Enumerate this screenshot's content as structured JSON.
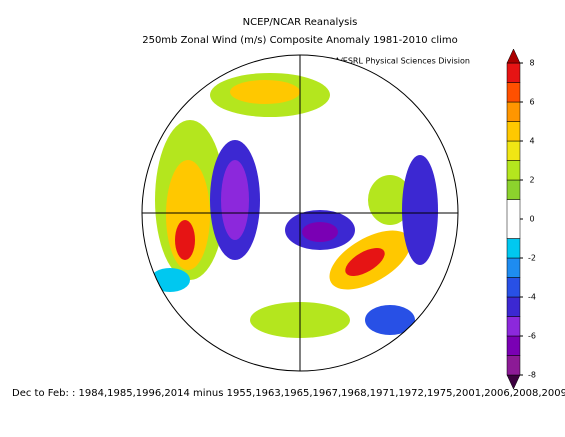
{
  "header": {
    "title": "NCEP/NCAR Reanalysis",
    "subtitle": "250mb Zonal Wind (m/s) Composite Anomaly 1981-2010 climo",
    "credit": "NOAA/ESRL Physical Sciences Division"
  },
  "footer": "Dec to Feb: : 1984,1985,1996,2014 minus 1955,1963,1965,1967,1968,1971,1972,1975,2001,2006,2008,2009,",
  "colorbar": {
    "lim": [
      -8,
      8
    ],
    "ticks": [
      8,
      6,
      4,
      2,
      0,
      -2,
      -4,
      -6,
      -8
    ],
    "boundaries": [
      -8,
      -7,
      -6,
      -5,
      -4,
      -3,
      -2,
      -1,
      1,
      2,
      3,
      4,
      5,
      6,
      7,
      8
    ],
    "colors": [
      "#3c0040",
      "#8c1a96",
      "#7a00b4",
      "#8c28dc",
      "#3c28d2",
      "#2850e6",
      "#1e8cf0",
      "#00c8f0",
      "#ffffff",
      "#8cd22d",
      "#b4e61e",
      "#f0e614",
      "#ffc800",
      "#ff9600",
      "#ff5000",
      "#e61414",
      "#aa0000"
    ]
  }
}
